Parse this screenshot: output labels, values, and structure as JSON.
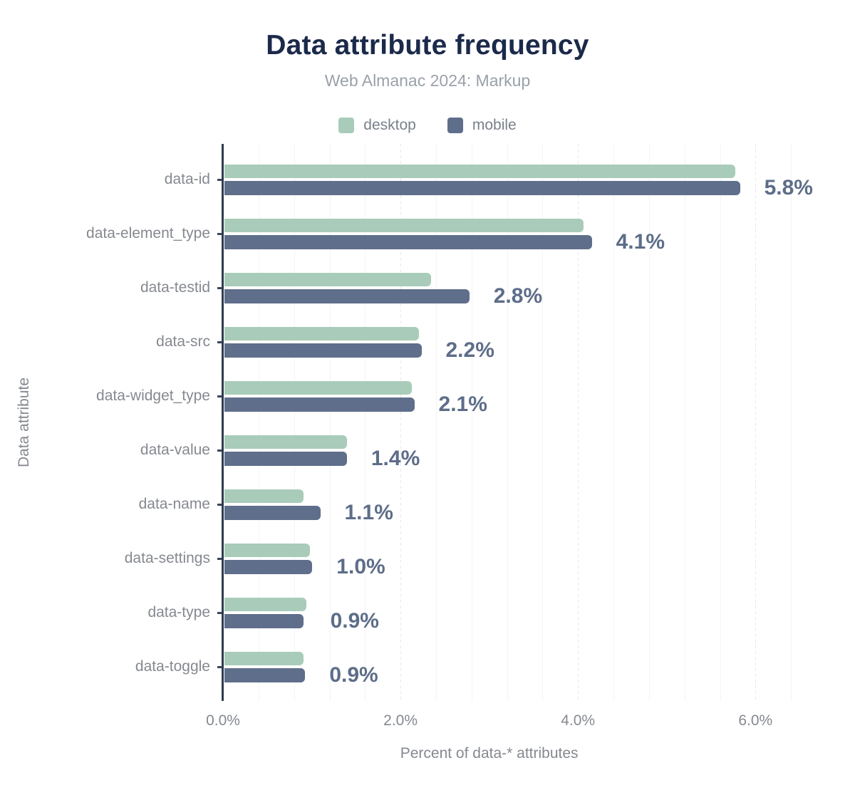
{
  "title": "Data attribute frequency",
  "subtitle": "Web Almanac 2024: Markup",
  "colors": {
    "background": "#ffffff",
    "title": "#1b2a4a",
    "subtitle": "#9aa1a9",
    "axis_text": "#85898f",
    "legend_text": "#7a8089",
    "data_label": "#5d6d89",
    "axis_line": "#2f3b4f",
    "grid_minor": "#f3f4f6",
    "grid_major": "#e5e8ec",
    "desktop": "#a8ccb9",
    "mobile": "#5f6e8a"
  },
  "chart_data": {
    "type": "bar",
    "orientation": "horizontal",
    "title": "Data attribute frequency",
    "subtitle": "Web Almanac 2024: Markup",
    "xlabel": "Percent of data-* attributes",
    "ylabel": "Data attribute",
    "categories": [
      "data-id",
      "data-element_type",
      "data-testid",
      "data-src",
      "data-widget_type",
      "data-value",
      "data-name",
      "data-settings",
      "data-type",
      "data-toggle"
    ],
    "series": [
      {
        "name": "desktop",
        "color": "#a8ccb9",
        "values": [
          5.76,
          4.05,
          2.33,
          2.19,
          2.11,
          1.38,
          0.89,
          0.96,
          0.92,
          0.89
        ]
      },
      {
        "name": "mobile",
        "color": "#5f6e8a",
        "values": [
          5.81,
          4.14,
          2.76,
          2.22,
          2.14,
          1.38,
          1.08,
          0.99,
          0.89,
          0.91
        ]
      }
    ],
    "data_labels": [
      "5.8%",
      "4.1%",
      "2.8%",
      "2.2%",
      "2.1%",
      "1.4%",
      "1.1%",
      "1.0%",
      "0.9%",
      "0.9%"
    ],
    "x_ticks": [
      "0.0%",
      "2.0%",
      "4.0%",
      "6.0%"
    ],
    "x_tick_values": [
      0,
      2,
      4,
      6
    ],
    "xlim": [
      0,
      6.6
    ],
    "minor_grid_step": 0.4,
    "major_grid_step": 2.0,
    "grid": true,
    "legend_position": "top"
  }
}
